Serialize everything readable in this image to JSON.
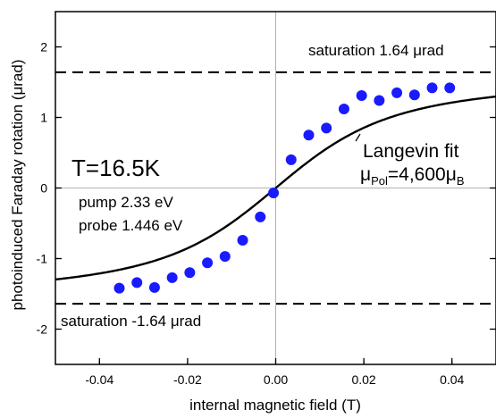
{
  "chart_data": {
    "type": "scatter",
    "xlabel": "internal magnetic field (T)",
    "ylabel": "photoinduced Faraday rotation (μrad)",
    "xlim": [
      -0.05,
      0.05
    ],
    "ylim": [
      -2.5,
      2.5
    ],
    "x_ticks": [
      -0.04,
      -0.02,
      0.0,
      0.02,
      0.04
    ],
    "x_tick_labels": [
      "-0.04",
      "-0.02",
      "0.00",
      "0.02",
      "0.04"
    ],
    "y_ticks": [
      -2,
      -1,
      0,
      1,
      2
    ],
    "y_tick_labels": [
      "-2",
      "-1",
      "0",
      "1",
      "2"
    ],
    "grid": false,
    "colors": {
      "points": "#1a1aff",
      "fit": "#000000",
      "zero_lines": "#b0b0b0"
    },
    "series": [
      {
        "kind": "points",
        "x": [
          -0.0355,
          -0.0315,
          -0.0275,
          -0.0235,
          -0.0195,
          -0.0155,
          -0.0115,
          -0.0075,
          -0.0035,
          -0.0005,
          0.0035,
          0.0075,
          0.0115,
          0.0155,
          0.0195,
          0.0235,
          0.0275,
          0.0315,
          0.0355,
          0.0395
        ],
        "y": [
          -1.42,
          -1.34,
          -1.41,
          -1.27,
          -1.2,
          -1.06,
          -0.97,
          -0.74,
          -0.41,
          -0.07,
          0.4,
          0.75,
          0.85,
          1.12,
          1.31,
          1.24,
          1.35,
          1.32,
          1.42,
          1.42
        ]
      },
      {
        "kind": "fit",
        "saturation": 1.64,
        "x0": 0.0,
        "scale": 0.0105
      }
    ],
    "reference_lines": [
      {
        "axis": "y",
        "value": 1.64,
        "style": "dashed"
      },
      {
        "axis": "y",
        "value": -1.64,
        "style": "dashed"
      },
      {
        "axis": "y",
        "value": 0,
        "style": "solid-gray"
      },
      {
        "axis": "x",
        "value": 0,
        "style": "solid-gray"
      }
    ]
  },
  "annotations": {
    "saturation_high": "saturation 1.64 μrad",
    "saturation_low": "saturation -1.64 μrad",
    "temperature": "T=16.5K",
    "pump": "pump 2.33 eV",
    "probe": "probe 1.446 eV",
    "fit_label": "Langevin fit",
    "mu_symbol": "μ",
    "mu_pol_sub": "Pol",
    "mu_eq": "=4,600",
    "mu_b_symbol": "μ",
    "mu_b_sub": "B"
  }
}
